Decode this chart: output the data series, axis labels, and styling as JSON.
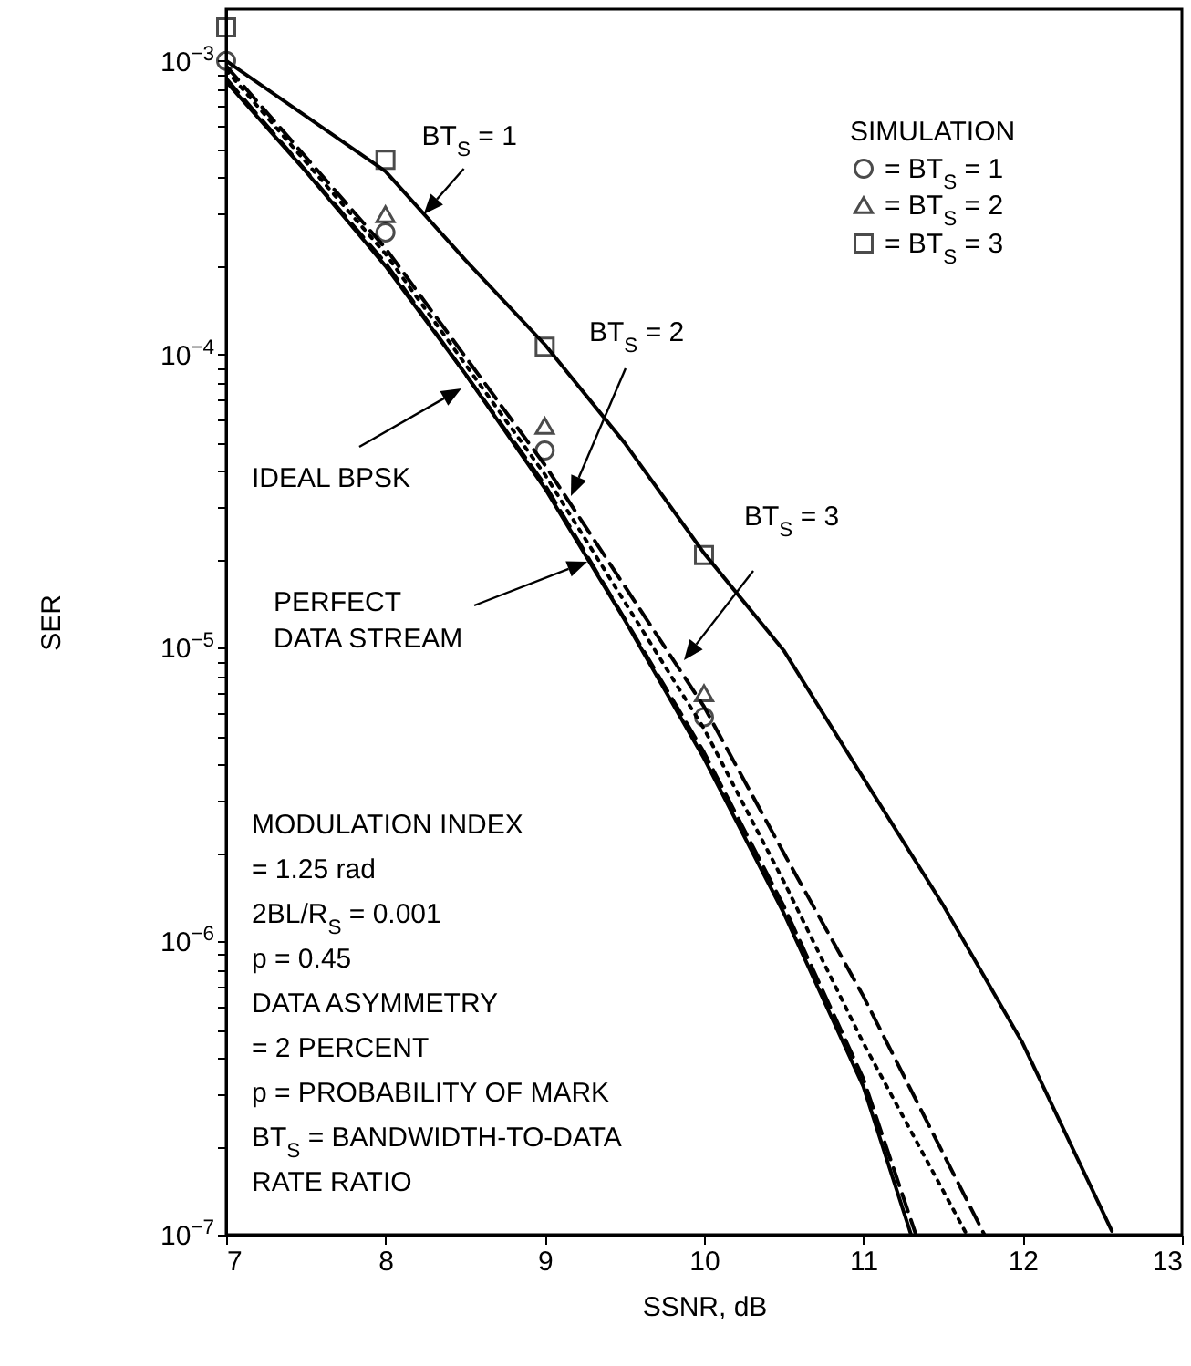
{
  "chart_data": {
    "type": "line",
    "xlabel": "SSNR, dB",
    "ylabel": "SER",
    "log": "y",
    "legend": "top right",
    "legend_title": "SIMULATION",
    "xlim": [
      7,
      13
    ],
    "xticks": [
      7,
      8,
      9,
      10,
      11,
      12,
      13
    ],
    "ylim": [
      1e-07,
      0.0015
    ],
    "yticks": [
      {
        "value": 1e-07,
        "label": "10$^{−7}$"
      },
      {
        "value": 2e-07,
        "label": null
      },
      {
        "value": 3e-07,
        "label": null
      },
      {
        "value": 4e-07,
        "label": null
      },
      {
        "value": 5e-07,
        "label": null
      },
      {
        "value": 6e-07,
        "label": null
      },
      {
        "value": 7e-07,
        "label": null
      },
      {
        "value": 8e-07,
        "label": null
      },
      {
        "value": 9e-07,
        "label": null
      },
      {
        "value": 1e-06,
        "label": "10$^{−6}$"
      },
      {
        "value": 2e-06,
        "label": null
      },
      {
        "value": 3e-06,
        "label": null
      },
      {
        "value": 4e-06,
        "label": null
      },
      {
        "value": 5e-06,
        "label": null
      },
      {
        "value": 6e-06,
        "label": null
      },
      {
        "value": 7e-06,
        "label": null
      },
      {
        "value": 8e-06,
        "label": null
      },
      {
        "value": 9e-06,
        "label": null
      },
      {
        "value": 1e-05,
        "label": "10$^{−5}$"
      },
      {
        "value": 2e-05,
        "label": null
      },
      {
        "value": 3e-05,
        "label": null
      },
      {
        "value": 4e-05,
        "label": null
      },
      {
        "value": 5e-05,
        "label": null
      },
      {
        "value": 6e-05,
        "label": null
      },
      {
        "value": 7e-05,
        "label": null
      },
      {
        "value": 8e-05,
        "label": null
      },
      {
        "value": 9e-05,
        "label": null
      },
      {
        "value": 0.0001,
        "label": "10$^{−4}$"
      },
      {
        "value": 0.0002,
        "label": null
      },
      {
        "value": 0.0003,
        "label": null
      },
      {
        "value": 0.0004,
        "label": null
      },
      {
        "value": 0.0005,
        "label": null
      },
      {
        "value": 0.0006,
        "label": null
      },
      {
        "value": 0.0007,
        "label": null
      },
      {
        "value": 0.0008,
        "label": null
      },
      {
        "value": 0.0009,
        "label": null
      },
      {
        "value": 0.001,
        "label": "10$^{−3}$"
      }
    ],
    "series": [
      {
        "type": "line",
        "color": "#000000",
        "line_style": "solid",
        "x": [
          7,
          7.5,
          8,
          8.5,
          9,
          9.5,
          10,
          10.5,
          11,
          11.3
        ],
        "values": [
          0.00085,
          0.00042,
          0.0002,
          8.6e-05,
          3.5e-05,
          1.25e-05,
          4.2e-06,
          1.25e-06,
          3.2e-07,
          1e-07
        ]
      },
      {
        "type": "line",
        "color": "#000000",
        "line_style": "dashed",
        "x": [
          7,
          8,
          9,
          10,
          10.5,
          11,
          11.33
        ],
        "values": [
          0.00087,
          0.000205,
          3.6e-05,
          4.4e-06,
          1.32e-06,
          3.4e-07,
          1e-07
        ]
      },
      {
        "type": "line",
        "color": "#000000",
        "line_style": "dotted",
        "x": [
          7,
          8,
          9,
          10,
          10.5,
          11,
          11.65
        ],
        "values": [
          0.00093,
          0.00022,
          3.9e-05,
          5.3e-06,
          1.6e-06,
          4.5e-07,
          1e-07
        ]
      },
      {
        "type": "line",
        "color": "#000000",
        "line_style": "dashed",
        "x": [
          7,
          8,
          9,
          10,
          10.5,
          11,
          11.76
        ],
        "values": [
          0.00096,
          0.00023,
          4.2e-05,
          6.3e-06,
          2e-06,
          6.5e-07,
          1e-07
        ]
      },
      {
        "type": "line",
        "color": "#000000",
        "line_style": "solid",
        "x": [
          7,
          8,
          8.5,
          9,
          9.5,
          10,
          10.5,
          11,
          11.5,
          12,
          12.56
        ],
        "values": [
          0.001,
          0.00042,
          0.00021,
          0.000108,
          5e-05,
          2.1e-05,
          9.8e-06,
          3.6e-06,
          1.33e-06,
          4.5e-07,
          1.03e-07
        ]
      },
      {
        "type": "scatter",
        "name": "= BT$_{S}$ = 1",
        "color": "#000000",
        "marker": "circle",
        "x": [
          7,
          8,
          9,
          10
        ],
        "values": [
          0.001,
          0.00026,
          4.7e-05,
          5.8e-06
        ]
      },
      {
        "type": "scatter",
        "name": "= BT$_{S}$ = 2",
        "color": "#000000",
        "marker": "triangle",
        "x": [
          8,
          9,
          10
        ],
        "values": [
          0.0003,
          5.7e-05,
          7e-06
        ]
      },
      {
        "type": "scatter",
        "name": "= BT$_{S}$ = 3",
        "color": "#000000",
        "marker": "square",
        "x": [
          7,
          8,
          9,
          10
        ],
        "values": [
          0.0013,
          0.00046,
          0.000106,
          2.07e-05
        ]
      }
    ],
    "annotations": [
      {
        "text": "BT$_{S}$ = 1",
        "x": 8.24,
        "y": 0.0003
      },
      "BT$_{S}$ = 2",
      "BT$_{S}$ = 3",
      "IDEAL BPSK",
      "PERFECT\nDATA STREAM",
      "MODULATION INDEX",
      " = 1.25 rad",
      "2BL/R$_{S}$ = 0.001",
      "p = 0.45",
      "DATA ASYMMETRY",
      "= 2 PERCENT",
      "p = PROBABILITY OF MARK",
      "BT$_{S}$ = BANDWIDTH-TO-DATA",
      "RATE RATIO"
    ]
  }
}
